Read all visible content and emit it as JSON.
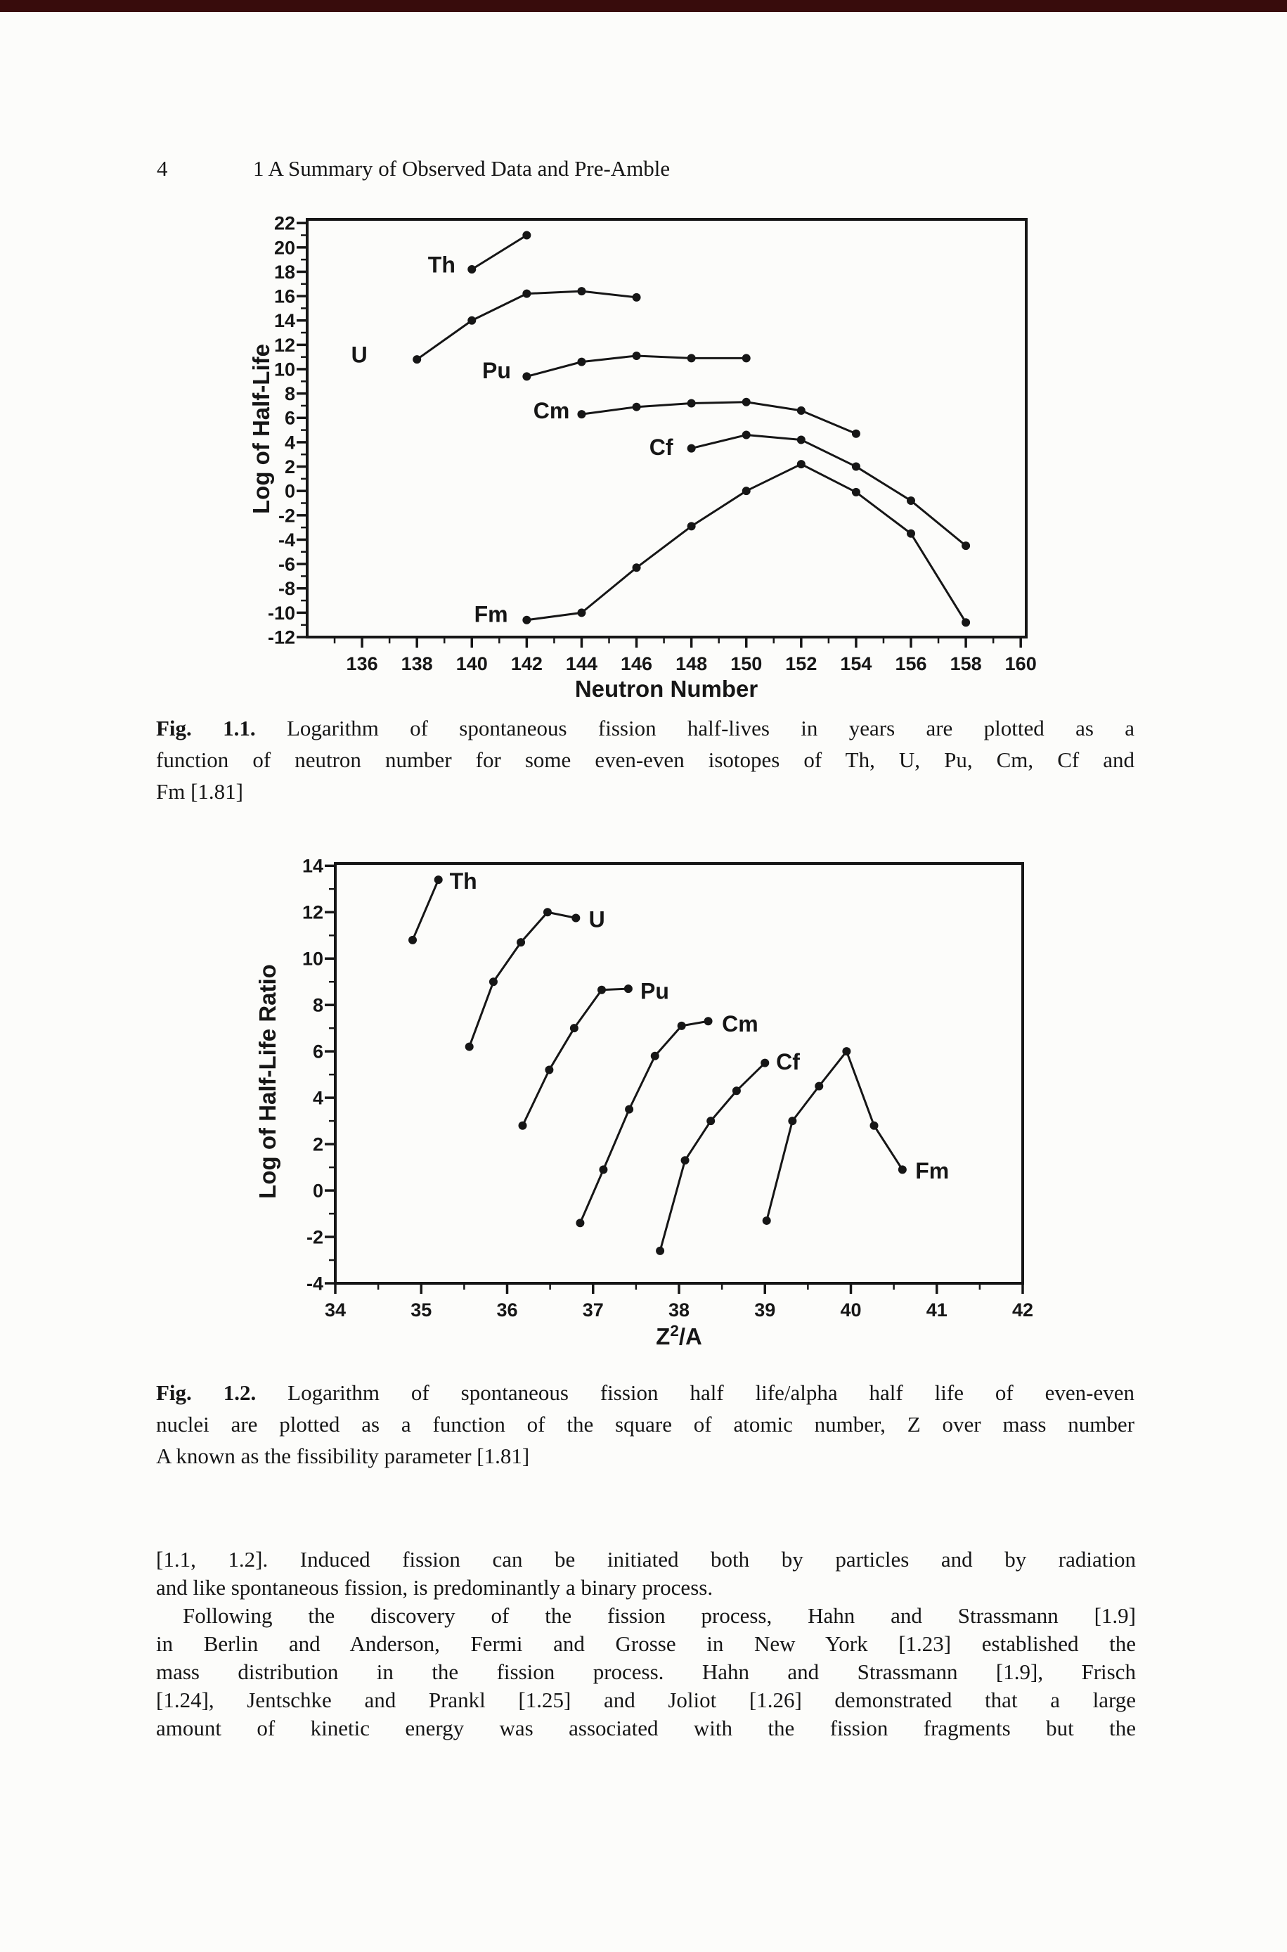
{
  "colors": {
    "ink": "#161616",
    "paper": "#fcfcfa",
    "scan_band": "#380c0c"
  },
  "header": {
    "page_number": "4",
    "chapter_title": "1 A Summary of Observed Data and Pre-Amble"
  },
  "chart_data": [
    {
      "id": "fig-1-1",
      "type": "line",
      "title": "",
      "xlabel": "Neutron Number",
      "ylabel": "Log of Half-Life",
      "xlim": [
        134,
        160.2
      ],
      "ylim": [
        -12,
        22.3
      ],
      "grid": false,
      "legend": "inline-labels",
      "x_ticks": {
        "start": 135,
        "end": 160,
        "step": 1,
        "label_start": 136,
        "label_step": 2
      },
      "y_ticks": {
        "start": -12,
        "end": 22,
        "step": 1,
        "label_start": -12,
        "label_step": 2
      },
      "series_label_anchor": "middle",
      "series": [
        {
          "name": "Th",
          "label_at": [
            138.9,
            18.6
          ],
          "points": [
            [
              140,
              18.2
            ],
            [
              142,
              21.0
            ]
          ]
        },
        {
          "name": "U",
          "label_at": [
            135.9,
            11.2
          ],
          "points": [
            [
              138,
              10.8
            ],
            [
              140,
              14.0
            ],
            [
              142,
              16.2
            ],
            [
              144,
              16.4
            ],
            [
              146,
              15.9
            ]
          ]
        },
        {
          "name": "Pu",
          "label_at": [
            140.9,
            9.9
          ],
          "points": [
            [
              142,
              9.4
            ],
            [
              144,
              10.6
            ],
            [
              146,
              11.1
            ],
            [
              148,
              10.9
            ],
            [
              150,
              10.9
            ]
          ]
        },
        {
          "name": "Cm",
          "label_at": [
            142.9,
            6.6
          ],
          "points": [
            [
              144,
              6.3
            ],
            [
              146,
              6.9
            ],
            [
              148,
              7.2
            ],
            [
              150,
              7.3
            ],
            [
              152,
              6.6
            ],
            [
              154,
              4.7
            ]
          ]
        },
        {
          "name": "Cf",
          "label_at": [
            146.9,
            3.6
          ],
          "points": [
            [
              148,
              3.5
            ],
            [
              150,
              4.6
            ],
            [
              152,
              4.2
            ],
            [
              154,
              2.0
            ],
            [
              156,
              -0.8
            ],
            [
              158,
              -4.5
            ]
          ]
        },
        {
          "name": "Fm",
          "label_at": [
            140.7,
            -10.1
          ],
          "points": [
            [
              142,
              -10.6
            ],
            [
              144,
              -10.0
            ],
            [
              146,
              -6.3
            ],
            [
              148,
              -2.9
            ],
            [
              150,
              0.0
            ],
            [
              152,
              2.2
            ],
            [
              154,
              -0.1
            ],
            [
              156,
              -3.5
            ],
            [
              158,
              -10.8
            ]
          ]
        }
      ]
    },
    {
      "id": "fig-1-2",
      "type": "line",
      "title": "",
      "xlabel": {
        "base": "Z",
        "sup": "2",
        "rest": "/A"
      },
      "ylabel": "Log of Half-Life Ratio",
      "xlim": [
        34,
        42
      ],
      "ylim": [
        -4,
        14.1
      ],
      "grid": false,
      "legend": "inline-labels",
      "x_ticks": {
        "start": 34,
        "end": 42,
        "step": 0.5,
        "label_start": 34,
        "label_step": 1
      },
      "y_ticks": {
        "start": -4,
        "end": 14,
        "step": 1,
        "label_start": -4,
        "label_step": 2
      },
      "series_label_anchor": "start",
      "series": [
        {
          "name": "Th",
          "label_at": [
            35.33,
            13.35
          ],
          "points": [
            [
              34.9,
              10.8
            ],
            [
              35.2,
              13.4
            ]
          ]
        },
        {
          "name": "U",
          "label_at": [
            36.95,
            11.7
          ],
          "points": [
            [
              35.56,
              6.2
            ],
            [
              35.84,
              9.0
            ],
            [
              36.16,
              10.7
            ],
            [
              36.47,
              12.0
            ],
            [
              36.8,
              11.75
            ]
          ]
        },
        {
          "name": "Pu",
          "label_at": [
            37.55,
            8.6
          ],
          "points": [
            [
              36.18,
              2.8
            ],
            [
              36.49,
              5.2
            ],
            [
              36.78,
              7.0
            ],
            [
              37.1,
              8.65
            ],
            [
              37.41,
              8.7
            ]
          ]
        },
        {
          "name": "Cm",
          "label_at": [
            38.5,
            7.2
          ],
          "points": [
            [
              36.85,
              -1.4
            ],
            [
              37.12,
              0.9
            ],
            [
              37.42,
              3.5
            ],
            [
              37.72,
              5.8
            ],
            [
              38.03,
              7.1
            ],
            [
              38.34,
              7.3
            ]
          ]
        },
        {
          "name": "Cf",
          "label_at": [
            39.13,
            5.55
          ],
          "points": [
            [
              37.78,
              -2.6
            ],
            [
              38.07,
              1.3
            ],
            [
              38.37,
              3.0
            ],
            [
              38.67,
              4.3
            ],
            [
              39.0,
              5.5
            ]
          ]
        },
        {
          "name": "Fm",
          "label_at": [
            40.75,
            0.85
          ],
          "points": [
            [
              39.02,
              -1.3
            ],
            [
              39.32,
              3.0
            ],
            [
              39.63,
              4.5
            ],
            [
              39.95,
              6.0
            ],
            [
              40.27,
              2.8
            ],
            [
              40.6,
              0.9
            ]
          ]
        }
      ]
    }
  ],
  "captions": [
    {
      "lines": [
        {
          "bold": "Fig. 1.1.",
          "text": "Logarithm of spontaneous fission half-lives in years are plotted as a",
          "justify": true
        },
        {
          "text": "function of neutron number for some even-even isotopes of Th, U, Pu, Cm, Cf and",
          "justify": true
        },
        {
          "text": "Fm [1.81]",
          "justify": false
        }
      ]
    },
    {
      "lines": [
        {
          "bold": "Fig. 1.2.",
          "text": "Logarithm of spontaneous fission half life/alpha half life of even-even",
          "justify": true
        },
        {
          "text": "nuclei are plotted as a function of the square of atomic number, Z over mass number",
          "justify": true
        },
        {
          "text": "A known as the fissibility parameter [1.81]",
          "justify": false
        }
      ]
    }
  ],
  "body": {
    "lines": [
      {
        "text": "[1.1, 1.2]. Induced fission can be initiated both by particles and by radiation",
        "justify": true
      },
      {
        "text": "and like spontaneous fission, is predominantly a binary process.",
        "justify": false
      },
      {
        "text": "Following the discovery of the fission process, Hahn and Strassmann [1.9]",
        "justify": true,
        "indent": true
      },
      {
        "text": "in Berlin and Anderson, Fermi and Grosse in New York [1.23] established the",
        "justify": true
      },
      {
        "text": "mass distribution in the fission process. Hahn and Strassmann [1.9], Frisch",
        "justify": true
      },
      {
        "text": "[1.24], Jentschke and Prankl [1.25] and Joliot [1.26] demonstrated that a large",
        "justify": true
      },
      {
        "text": "amount of kinetic energy was associated with the fission fragments but the",
        "justify": true
      }
    ]
  }
}
